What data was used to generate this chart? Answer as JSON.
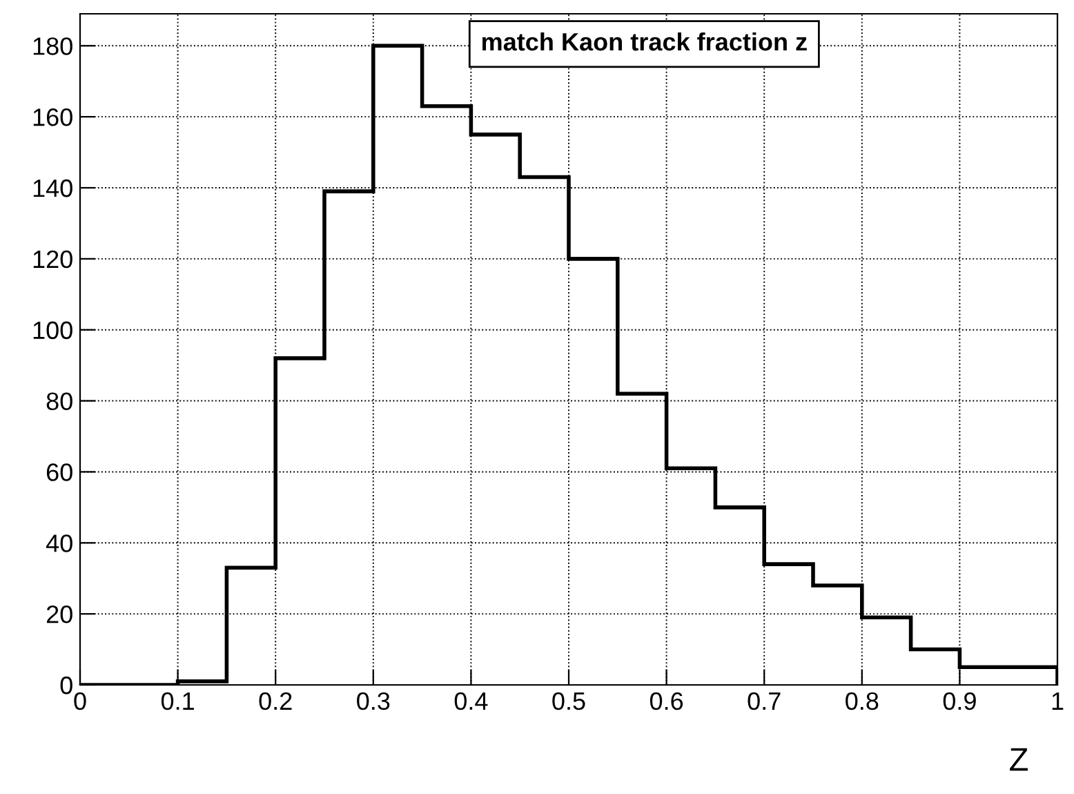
{
  "chart_data": {
    "type": "histogram",
    "title": "match Kaon track fraction z",
    "xlabel": "Z",
    "bins": [
      0,
      0.05,
      0.1,
      0.15,
      0.2,
      0.25,
      0.3,
      0.35,
      0.4,
      0.45,
      0.5,
      0.55,
      0.6,
      0.65,
      0.7,
      0.75,
      0.8,
      0.85,
      0.9,
      0.95,
      1
    ],
    "values": [
      0,
      0,
      1,
      33,
      92,
      139,
      180,
      163,
      155,
      143,
      120,
      82,
      61,
      50,
      34,
      28,
      19,
      10,
      5,
      5
    ],
    "color": "#000000",
    "xlim": [
      0,
      1
    ],
    "ylim": [
      0,
      189
    ],
    "xticks": [
      0,
      {
        "value": 0.1,
        "label": "0.1"
      },
      {
        "value": 0.2,
        "label": "0.2"
      },
      {
        "value": 0.3,
        "label": "0.3"
      },
      {
        "value": 0.4,
        "label": "0.4"
      },
      {
        "value": 0.5,
        "label": "0.5"
      },
      {
        "value": 0.6,
        "label": "0.6"
      },
      {
        "value": 0.7,
        "label": "0.7"
      },
      {
        "value": 0.8,
        "label": "0.8"
      },
      {
        "value": 0.9,
        "label": "0.9"
      },
      1
    ],
    "yticks": [
      0,
      20,
      40,
      60,
      80,
      100,
      120,
      140,
      160,
      180
    ],
    "grid": true,
    "line_style": "dotted"
  }
}
